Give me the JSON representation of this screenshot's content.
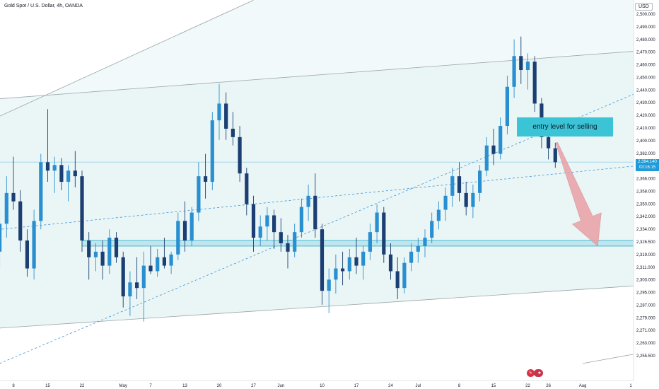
{
  "header": {
    "symbol_title": "Gold Spot / U.S. Dollar, 4h, OANDA",
    "currency": "USD"
  },
  "price_badge": {
    "price": "2,394.140",
    "countdown": "03:16:15"
  },
  "annotation": {
    "text": "entry level for selling"
  },
  "colors": {
    "up": "#2a8fd0",
    "down": "#1c3f73",
    "channel_line": "#9aa5a8",
    "channel_fill": "#e6f4f5",
    "support_zone": "#2aa8c9",
    "arrow_fill": "#e8a0a6",
    "accent": "#1e9bd8"
  },
  "event_icons": [
    {
      "name": "lightning-icon",
      "glyph": "ϟ",
      "color": "#d9334a",
      "date_index": 64
    },
    {
      "name": "us-flag-icon",
      "glyph": "★",
      "color": "#c7344c",
      "date_index": 65
    },
    {
      "name": "us-flag-icon",
      "glyph": "★",
      "color": "#c7344c",
      "date_index": 65.3
    }
  ],
  "chart_data": {
    "type": "candlestick",
    "title": "Gold Spot / U.S. Dollar, 4h, OANDA",
    "ylabel": "USD",
    "ylim": [
      2250,
      2505
    ],
    "grid": false,
    "y_ticks": [
      "2,500.000",
      "2,490.000",
      "2,480.000",
      "2,470.000",
      "2,460.000",
      "2,450.000",
      "2,440.000",
      "2,430.000",
      "2,420.000",
      "2,410.000",
      "2,400.000",
      "2,382.000",
      "2,374.000",
      "2,366.000",
      "2,358.000",
      "2,350.000",
      "2,342.000",
      "2,334.000",
      "2,326.500",
      "2,319.000",
      "2,311.000",
      "2,303.000",
      "2,295.000",
      "2,287.000",
      "2,279.000",
      "2,271.000",
      "2,263.000",
      "2,255.500"
    ],
    "x_ticks": [
      {
        "label": "8",
        "date_index": 0
      },
      {
        "label": "15",
        "date_index": 5
      },
      {
        "label": "22",
        "date_index": 10
      },
      {
        "label": "May",
        "date_index": 16
      },
      {
        "label": "7",
        "date_index": 20
      },
      {
        "label": "13",
        "date_index": 25
      },
      {
        "label": "20",
        "date_index": 30
      },
      {
        "label": "27",
        "date_index": 35
      },
      {
        "label": "Jun",
        "date_index": 39
      },
      {
        "label": "10",
        "date_index": 45
      },
      {
        "label": "17",
        "date_index": 50
      },
      {
        "label": "24",
        "date_index": 55
      },
      {
        "label": "Jul",
        "date_index": 59
      },
      {
        "label": "8",
        "date_index": 65
      },
      {
        "label": "15",
        "date_index": 70
      },
      {
        "label": "22",
        "date_index": 75
      },
      {
        "label": "26",
        "date_index": 78
      },
      {
        "label": "Aug",
        "date_index": 83
      },
      {
        "label": "1",
        "date_index": 90
      }
    ],
    "last_price": 2394.14,
    "support_zone": [
      2334,
      2338
    ],
    "entry_level": 2416,
    "sell_target": 2334,
    "channel": {
      "upper": [
        [
          -6,
          2438
        ],
        [
          92,
          2474
        ]
      ],
      "lower": [
        [
          -6,
          2274
        ],
        [
          92,
          2306
        ]
      ]
    },
    "outer_line": [
      [
        -6,
        2418
      ],
      [
        35,
        2510
      ]
    ],
    "lower_outer_line": [
      [
        83,
        2250
      ],
      [
        92,
        2258
      ]
    ],
    "dashed_lines": [
      {
        "from": [
          -6,
          2344
        ],
        "to": [
          92,
          2392
        ]
      },
      {
        "from": [
          -2,
          2250
        ],
        "to": [
          92,
          2446
        ]
      }
    ],
    "series": [
      {
        "date_index": -6,
        "ohlc": [
          2291,
          2299,
          2283,
          2296
        ]
      },
      {
        "date_index": -5,
        "ohlc": [
          2296,
          2326,
          2290,
          2320
        ]
      },
      {
        "date_index": -4,
        "ohlc": [
          2320,
          2340,
          2306,
          2312
        ]
      },
      {
        "date_index": -3,
        "ohlc": [
          2312,
          2342,
          2300,
          2330
        ]
      },
      {
        "date_index": -2,
        "ohlc": [
          2330,
          2360,
          2318,
          2350
        ]
      },
      {
        "date_index": -1,
        "ohlc": [
          2350,
          2384,
          2340,
          2372
        ]
      },
      {
        "date_index": 0,
        "ohlc": [
          2372,
          2398,
          2360,
          2366
        ]
      },
      {
        "date_index": 1,
        "ohlc": [
          2366,
          2374,
          2330,
          2338
        ]
      },
      {
        "date_index": 2,
        "ohlc": [
          2338,
          2346,
          2312,
          2318
        ]
      },
      {
        "date_index": 3,
        "ohlc": [
          2318,
          2360,
          2310,
          2352
        ]
      },
      {
        "date_index": 4,
        "ohlc": [
          2352,
          2400,
          2346,
          2394
        ]
      },
      {
        "date_index": 5,
        "ohlc": [
          2394,
          2432,
          2380,
          2388
        ]
      },
      {
        "date_index": 6,
        "ohlc": [
          2388,
          2398,
          2372,
          2392
        ]
      },
      {
        "date_index": 7,
        "ohlc": [
          2392,
          2397,
          2374,
          2380
        ]
      },
      {
        "date_index": 8,
        "ohlc": [
          2380,
          2392,
          2366,
          2388
        ]
      },
      {
        "date_index": 9,
        "ohlc": [
          2388,
          2402,
          2376,
          2384
        ]
      },
      {
        "date_index": 10,
        "ohlc": [
          2384,
          2388,
          2330,
          2338
        ]
      },
      {
        "date_index": 11,
        "ohlc": [
          2338,
          2344,
          2310,
          2326
        ]
      },
      {
        "date_index": 12,
        "ohlc": [
          2326,
          2336,
          2316,
          2330
        ]
      },
      {
        "date_index": 13,
        "ohlc": [
          2330,
          2338,
          2310,
          2320
        ]
      },
      {
        "date_index": 14,
        "ohlc": [
          2320,
          2346,
          2314,
          2340
        ]
      },
      {
        "date_index": 15,
        "ohlc": [
          2340,
          2344,
          2322,
          2326
        ]
      },
      {
        "date_index": 16,
        "ohlc": [
          2326,
          2330,
          2290,
          2298
        ]
      },
      {
        "date_index": 17,
        "ohlc": [
          2298,
          2316,
          2284,
          2308
        ]
      },
      {
        "date_index": 18,
        "ohlc": [
          2308,
          2326,
          2296,
          2304
        ]
      },
      {
        "date_index": 19,
        "ohlc": [
          2304,
          2330,
          2280,
          2320
        ]
      },
      {
        "date_index": 20,
        "ohlc": [
          2320,
          2334,
          2314,
          2316
        ]
      },
      {
        "date_index": 21,
        "ohlc": [
          2316,
          2332,
          2312,
          2326
        ]
      },
      {
        "date_index": 22,
        "ohlc": [
          2326,
          2340,
          2318,
          2320
        ]
      },
      {
        "date_index": 23,
        "ohlc": [
          2320,
          2330,
          2314,
          2328
        ]
      },
      {
        "date_index": 24,
        "ohlc": [
          2328,
          2358,
          2324,
          2352
        ]
      },
      {
        "date_index": 25,
        "ohlc": [
          2352,
          2366,
          2330,
          2338
        ]
      },
      {
        "date_index": 26,
        "ohlc": [
          2338,
          2362,
          2334,
          2358
        ]
      },
      {
        "date_index": 27,
        "ohlc": [
          2358,
          2394,
          2352,
          2384
        ]
      },
      {
        "date_index": 28,
        "ohlc": [
          2384,
          2400,
          2368,
          2380
        ]
      },
      {
        "date_index": 29,
        "ohlc": [
          2380,
          2430,
          2374,
          2424
        ]
      },
      {
        "date_index": 30,
        "ohlc": [
          2424,
          2450,
          2410,
          2436
        ]
      },
      {
        "date_index": 31,
        "ohlc": [
          2436,
          2444,
          2410,
          2418
        ]
      },
      {
        "date_index": 32,
        "ohlc": [
          2418,
          2430,
          2406,
          2412
        ]
      },
      {
        "date_index": 33,
        "ohlc": [
          2412,
          2420,
          2380,
          2386
        ]
      },
      {
        "date_index": 34,
        "ohlc": [
          2386,
          2390,
          2356,
          2364
        ]
      },
      {
        "date_index": 35,
        "ohlc": [
          2364,
          2370,
          2330,
          2340
        ]
      },
      {
        "date_index": 36,
        "ohlc": [
          2340,
          2356,
          2334,
          2348
        ]
      },
      {
        "date_index": 37,
        "ohlc": [
          2348,
          2362,
          2338,
          2356
        ]
      },
      {
        "date_index": 38,
        "ohlc": [
          2356,
          2360,
          2332,
          2344
        ]
      },
      {
        "date_index": 39,
        "ohlc": [
          2344,
          2354,
          2330,
          2336
        ]
      },
      {
        "date_index": 40,
        "ohlc": [
          2336,
          2342,
          2318,
          2330
        ]
      },
      {
        "date_index": 41,
        "ohlc": [
          2330,
          2350,
          2326,
          2344
        ]
      },
      {
        "date_index": 42,
        "ohlc": [
          2344,
          2368,
          2340,
          2362
        ]
      },
      {
        "date_index": 43,
        "ohlc": [
          2362,
          2378,
          2352,
          2370
        ]
      },
      {
        "date_index": 44,
        "ohlc": [
          2370,
          2386,
          2340,
          2346
        ]
      },
      {
        "date_index": 45,
        "ohlc": [
          2346,
          2350,
          2292,
          2302
        ]
      },
      {
        "date_index": 46,
        "ohlc": [
          2302,
          2318,
          2286,
          2310
        ]
      },
      {
        "date_index": 47,
        "ohlc": [
          2310,
          2328,
          2300,
          2318
        ]
      },
      {
        "date_index": 48,
        "ohlc": [
          2318,
          2330,
          2306,
          2316
        ]
      },
      {
        "date_index": 49,
        "ohlc": [
          2316,
          2332,
          2310,
          2326
        ]
      },
      {
        "date_index": 50,
        "ohlc": [
          2326,
          2340,
          2314,
          2320
        ]
      },
      {
        "date_index": 51,
        "ohlc": [
          2320,
          2334,
          2310,
          2330
        ]
      },
      {
        "date_index": 52,
        "ohlc": [
          2330,
          2350,
          2324,
          2344
        ]
      },
      {
        "date_index": 53,
        "ohlc": [
          2344,
          2364,
          2336,
          2358
        ]
      },
      {
        "date_index": 54,
        "ohlc": [
          2358,
          2362,
          2322,
          2328
        ]
      },
      {
        "date_index": 55,
        "ohlc": [
          2328,
          2336,
          2310,
          2316
        ]
      },
      {
        "date_index": 56,
        "ohlc": [
          2316,
          2326,
          2296,
          2304
        ]
      },
      {
        "date_index": 57,
        "ohlc": [
          2304,
          2326,
          2300,
          2322
        ]
      },
      {
        "date_index": 58,
        "ohlc": [
          2322,
          2336,
          2316,
          2330
        ]
      },
      {
        "date_index": 59,
        "ohlc": [
          2330,
          2340,
          2322,
          2334
        ]
      },
      {
        "date_index": 60,
        "ohlc": [
          2334,
          2346,
          2326,
          2340
        ]
      },
      {
        "date_index": 61,
        "ohlc": [
          2340,
          2358,
          2336,
          2352
        ]
      },
      {
        "date_index": 62,
        "ohlc": [
          2352,
          2366,
          2346,
          2360
        ]
      },
      {
        "date_index": 63,
        "ohlc": [
          2360,
          2376,
          2352,
          2370
        ]
      },
      {
        "date_index": 64,
        "ohlc": [
          2370,
          2390,
          2362,
          2384
        ]
      },
      {
        "date_index": 65,
        "ohlc": [
          2384,
          2394,
          2366,
          2372
        ]
      },
      {
        "date_index": 66,
        "ohlc": [
          2372,
          2380,
          2356,
          2362
        ]
      },
      {
        "date_index": 67,
        "ohlc": [
          2362,
          2378,
          2354,
          2372
        ]
      },
      {
        "date_index": 68,
        "ohlc": [
          2372,
          2392,
          2366,
          2388
        ]
      },
      {
        "date_index": 69,
        "ohlc": [
          2388,
          2412,
          2384,
          2406
        ]
      },
      {
        "date_index": 70,
        "ohlc": [
          2406,
          2418,
          2392,
          2400
        ]
      },
      {
        "date_index": 71,
        "ohlc": [
          2400,
          2426,
          2396,
          2420
        ]
      },
      {
        "date_index": 72,
        "ohlc": [
          2420,
          2456,
          2414,
          2448
        ]
      },
      {
        "date_index": 73,
        "ohlc": [
          2448,
          2482,
          2440,
          2470
        ]
      },
      {
        "date_index": 74,
        "ohlc": [
          2470,
          2484,
          2450,
          2460
        ]
      },
      {
        "date_index": 75,
        "ohlc": [
          2460,
          2472,
          2446,
          2466
        ]
      },
      {
        "date_index": 76,
        "ohlc": [
          2466,
          2470,
          2430,
          2436
        ]
      },
      {
        "date_index": 77,
        "ohlc": [
          2436,
          2440,
          2404,
          2412
        ]
      },
      {
        "date_index": 78,
        "ohlc": [
          2412,
          2418,
          2396,
          2404
        ]
      },
      {
        "date_index": 79,
        "ohlc": [
          2404,
          2408,
          2390,
          2394
        ]
      }
    ]
  }
}
